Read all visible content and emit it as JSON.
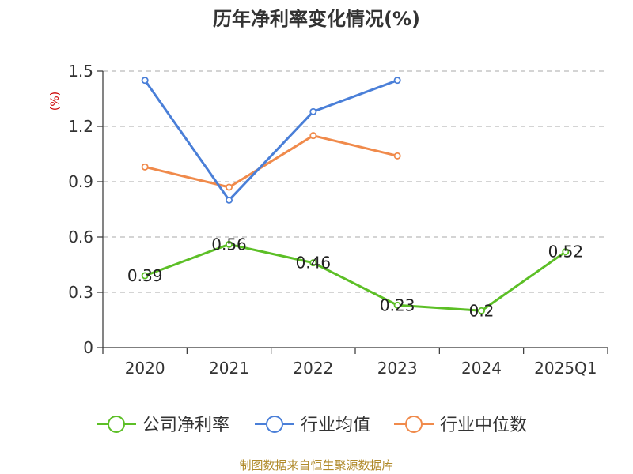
{
  "chart_data": {
    "type": "line",
    "title": "历年净利率变化情况(%)",
    "ylabel": "(%)",
    "xlabel": "",
    "categories": [
      "2020",
      "2021",
      "2022",
      "2023",
      "2024",
      "2025Q1"
    ],
    "yticks": [
      "0",
      "0.3",
      "0.6",
      "0.9",
      "1.2",
      "1.5"
    ],
    "ylim": [
      0,
      1.5
    ],
    "grid": true,
    "legend_position": "bottom",
    "series": [
      {
        "name": "公司净利率",
        "color": "#5cbf26",
        "values": [
          0.39,
          0.56,
          0.46,
          0.23,
          0.2,
          0.52
        ],
        "labels": [
          "0.39",
          "0.56",
          "0.46",
          "0.23",
          "0.2",
          "0.52"
        ]
      },
      {
        "name": "行业均值",
        "color": "#4a7fd8",
        "values": [
          1.45,
          0.8,
          1.28,
          1.45,
          null,
          null
        ]
      },
      {
        "name": "行业中位数",
        "color": "#f08a4b",
        "values": [
          0.98,
          0.87,
          1.15,
          1.04,
          null,
          null
        ]
      }
    ]
  },
  "source": "制图数据来自恒生聚源数据库"
}
